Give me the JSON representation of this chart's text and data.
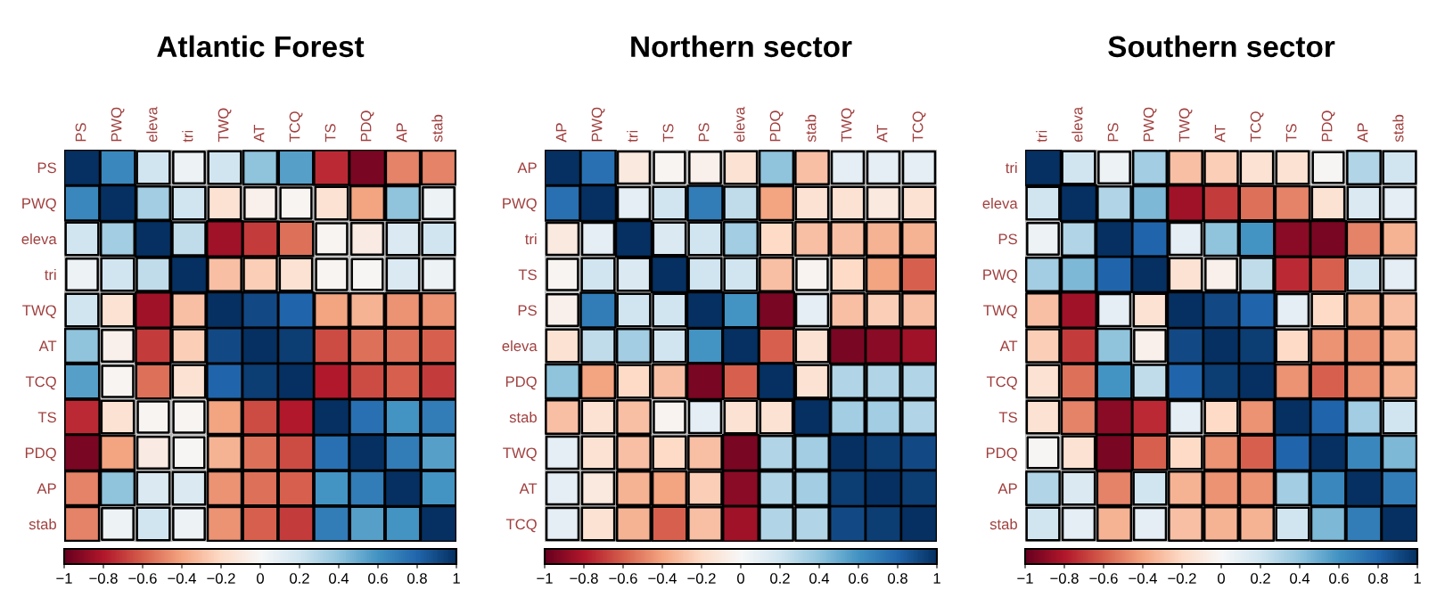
{
  "chart_data": [
    {
      "type": "heatmap",
      "title": "Atlantic Forest",
      "grid": true,
      "clim": [
        -1,
        1
      ],
      "cticks": [
        {
          "value": -1,
          "label": "−1"
        },
        {
          "value": -0.8,
          "label": "−0.8"
        },
        {
          "value": -0.6,
          "label": "−0.6"
        },
        {
          "value": -0.4,
          "label": "−0.4"
        },
        {
          "value": -0.2,
          "label": "−0.2"
        },
        0,
        0.2,
        0.4,
        0.6,
        0.8,
        1
      ],
      "categories": [
        "PS",
        "PWQ",
        "eleva",
        "tri",
        "TWQ",
        "AT",
        "TCQ",
        "TS",
        "PDQ",
        "AP",
        "stab"
      ],
      "y_categories": [
        "PS",
        "PWQ",
        "eleva",
        "tri",
        "TWQ",
        "AT",
        "TCQ",
        "TS",
        "PDQ",
        "AP",
        "stab"
      ],
      "cells": [
        [
          1,
          0.65,
          0.2,
          0.05,
          0.2,
          0.4,
          0.55,
          -0.75,
          -0.95,
          -0.5,
          -0.5
        ],
        [
          0.65,
          1,
          0.35,
          0.2,
          -0.15,
          -0.05,
          -0.02,
          -0.15,
          -0.4,
          0.4,
          0.05
        ],
        [
          0.2,
          0.35,
          1,
          0.25,
          -0.85,
          -0.7,
          -0.55,
          -0.02,
          -0.08,
          0.15,
          0.2
        ],
        [
          0.05,
          0.2,
          0.25,
          1,
          -0.3,
          -0.25,
          -0.15,
          -0.02,
          -0.01,
          0.15,
          0.05
        ],
        [
          0.2,
          -0.15,
          -0.85,
          -0.3,
          1,
          0.9,
          0.8,
          -0.4,
          -0.35,
          -0.45,
          -0.45
        ],
        [
          0.4,
          -0.05,
          -0.7,
          -0.25,
          0.9,
          1,
          0.95,
          -0.65,
          -0.55,
          -0.55,
          -0.6
        ],
        [
          0.55,
          -0.02,
          -0.55,
          -0.15,
          0.8,
          0.95,
          1,
          -0.8,
          -0.65,
          -0.6,
          -0.7
        ],
        [
          -0.75,
          -0.15,
          -0.02,
          -0.02,
          -0.4,
          -0.65,
          -0.8,
          1,
          0.75,
          0.6,
          0.7
        ],
        [
          -0.95,
          -0.4,
          -0.08,
          -0.01,
          -0.35,
          -0.55,
          -0.65,
          0.75,
          1,
          0.7,
          0.55
        ],
        [
          -0.5,
          0.4,
          0.15,
          0.15,
          -0.45,
          -0.55,
          -0.6,
          0.6,
          0.7,
          1,
          0.6
        ],
        [
          -0.5,
          0.05,
          0.2,
          0.05,
          -0.45,
          -0.6,
          -0.7,
          0.7,
          0.55,
          0.6,
          1
        ]
      ]
    },
    {
      "type": "heatmap",
      "title": "Northern sector",
      "grid": true,
      "clim": [
        -1,
        1
      ],
      "cticks": [
        {
          "value": -1,
          "label": "−1"
        },
        {
          "value": -0.8,
          "label": "−0.8"
        },
        {
          "value": -0.6,
          "label": "−0.6"
        },
        {
          "value": -0.4,
          "label": "−0.4"
        },
        {
          "value": -0.2,
          "label": "−0.2"
        },
        0,
        0.2,
        0.4,
        0.6,
        0.8,
        1
      ],
      "categories": [
        "AP",
        "PWQ",
        "tri",
        "TS",
        "PS",
        "eleva",
        "PDQ",
        "stab",
        "TWQ",
        "AT",
        "TCQ"
      ],
      "y_categories": [
        "AP",
        "PWQ",
        "tri",
        "TS",
        "PS",
        "eleva",
        "PDQ",
        "stab",
        "TWQ",
        "AT",
        "TCQ"
      ],
      "cells": [
        [
          1,
          0.75,
          -0.1,
          -0.02,
          -0.05,
          -0.15,
          0.4,
          -0.3,
          0.1,
          0.1,
          0.1
        ],
        [
          0.75,
          1,
          0.1,
          0.2,
          0.7,
          0.25,
          -0.4,
          -0.15,
          -0.15,
          -0.1,
          -0.15
        ],
        [
          -0.1,
          0.1,
          1,
          0.15,
          0.2,
          0.35,
          -0.2,
          -0.3,
          -0.3,
          -0.35,
          -0.35
        ],
        [
          -0.02,
          0.2,
          0.15,
          1,
          0.2,
          0.2,
          -0.3,
          -0.03,
          -0.2,
          -0.4,
          -0.6
        ],
        [
          -0.05,
          0.7,
          0.2,
          0.2,
          1,
          0.6,
          -0.95,
          0.1,
          -0.3,
          -0.25,
          -0.3
        ],
        [
          -0.15,
          0.25,
          0.35,
          0.2,
          0.6,
          1,
          -0.6,
          -0.15,
          -0.95,
          -0.9,
          -0.85
        ],
        [
          0.4,
          -0.4,
          -0.2,
          -0.3,
          -0.95,
          -0.6,
          1,
          -0.15,
          0.3,
          0.3,
          0.3
        ],
        [
          -0.3,
          -0.15,
          -0.3,
          -0.03,
          0.1,
          -0.15,
          -0.15,
          1,
          0.35,
          0.35,
          0.3
        ],
        [
          0.1,
          -0.15,
          -0.3,
          -0.2,
          -0.3,
          -0.95,
          0.3,
          0.35,
          1,
          0.95,
          0.9
        ],
        [
          0.1,
          -0.1,
          -0.35,
          -0.4,
          -0.25,
          -0.9,
          0.3,
          0.35,
          0.95,
          1,
          0.95
        ],
        [
          0.1,
          -0.15,
          -0.35,
          -0.6,
          -0.3,
          -0.85,
          0.3,
          0.3,
          0.9,
          0.95,
          1
        ]
      ]
    },
    {
      "type": "heatmap",
      "title": "Southern sector",
      "grid": true,
      "clim": [
        -1,
        1
      ],
      "cticks": [
        {
          "value": -1,
          "label": "−1"
        },
        {
          "value": -0.8,
          "label": "−0.8"
        },
        {
          "value": -0.6,
          "label": "−0.6"
        },
        {
          "value": -0.4,
          "label": "−0.4"
        },
        {
          "value": -0.2,
          "label": "−0.2"
        },
        0,
        0.2,
        0.4,
        0.6,
        0.8,
        1
      ],
      "categories": [
        "tri",
        "eleva",
        "PS",
        "PWQ",
        "TWQ",
        "AT",
        "TCQ",
        "TS",
        "PDQ",
        "AP",
        "stab"
      ],
      "y_categories": [
        "tri",
        "eleva",
        "PS",
        "PWQ",
        "TWQ",
        "AT",
        "TCQ",
        "TS",
        "PDQ",
        "AP",
        "stab"
      ],
      "cells": [
        [
          1,
          0.2,
          0.05,
          0.35,
          -0.3,
          -0.25,
          -0.15,
          -0.15,
          -0.01,
          0.3,
          0.2
        ],
        [
          0.2,
          1,
          0.3,
          0.45,
          -0.85,
          -0.7,
          -0.55,
          -0.5,
          -0.15,
          0.15,
          0.1
        ],
        [
          0.05,
          0.3,
          1,
          0.8,
          0.1,
          0.4,
          0.6,
          -0.9,
          -0.95,
          -0.5,
          -0.35
        ],
        [
          0.35,
          0.45,
          0.8,
          1,
          -0.15,
          -0.05,
          0.25,
          -0.75,
          -0.6,
          0.2,
          0.1
        ],
        [
          -0.3,
          -0.85,
          0.1,
          -0.15,
          1,
          0.9,
          0.8,
          0.1,
          -0.2,
          -0.35,
          -0.3
        ],
        [
          -0.25,
          -0.7,
          0.4,
          -0.05,
          0.9,
          1,
          0.95,
          -0.2,
          -0.45,
          -0.45,
          -0.35
        ],
        [
          -0.15,
          -0.55,
          0.6,
          0.25,
          0.8,
          0.95,
          1,
          -0.45,
          -0.6,
          -0.45,
          -0.35
        ],
        [
          -0.15,
          -0.5,
          -0.9,
          -0.75,
          0.1,
          -0.2,
          -0.45,
          1,
          0.8,
          0.35,
          0.2
        ],
        [
          -0.01,
          -0.15,
          -0.95,
          -0.6,
          -0.2,
          -0.45,
          -0.6,
          0.8,
          1,
          0.65,
          0.45
        ],
        [
          0.3,
          0.15,
          -0.5,
          0.2,
          -0.35,
          -0.45,
          -0.45,
          0.35,
          0.65,
          1,
          0.7
        ],
        [
          0.2,
          0.1,
          -0.35,
          0.1,
          -0.3,
          -0.35,
          -0.35,
          0.2,
          0.45,
          0.7,
          1
        ]
      ]
    }
  ]
}
